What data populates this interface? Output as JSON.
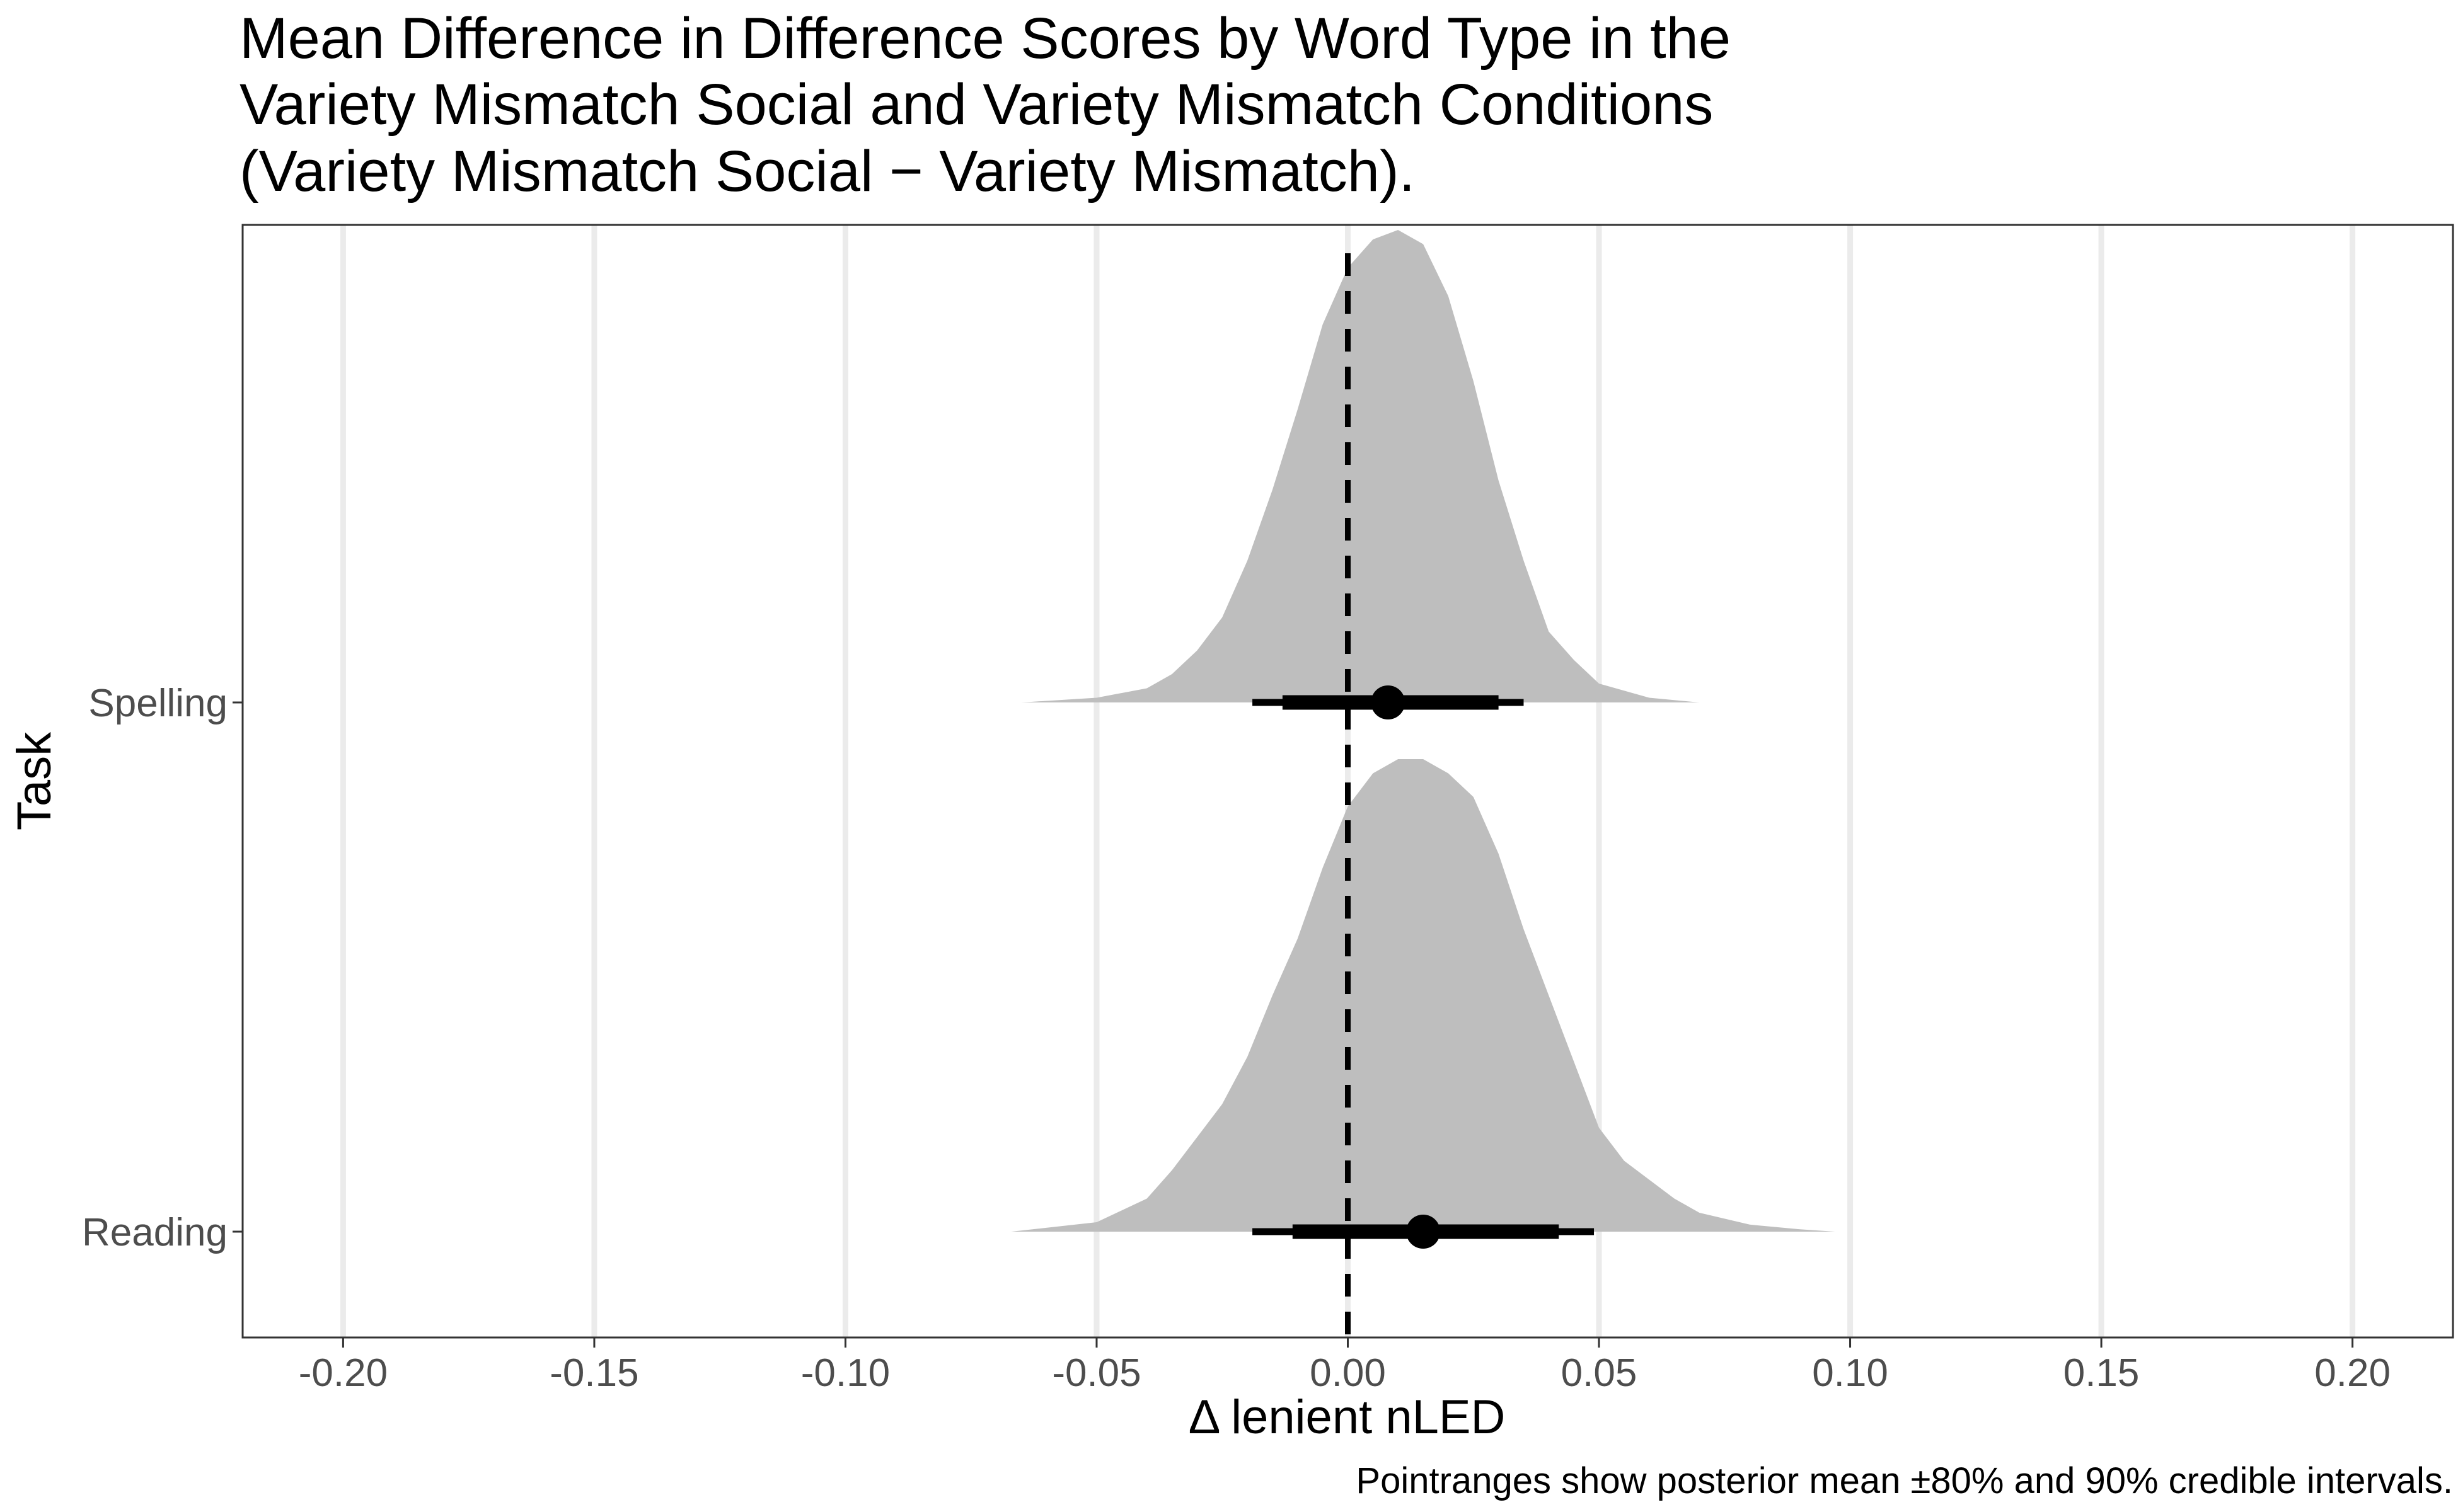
{
  "chart_data": {
    "type": "ridgeline",
    "title": [
      "Mean Difference in Difference Scores by Word Type in the",
      "Variety Mismatch Social and Variety Mismatch Conditions",
      "(Variety Mismatch Social − Variety Mismatch)."
    ],
    "xlabel": "Δ lenient nLED",
    "ylabel": "Task",
    "caption": "Pointranges show posterior mean ±80% and 90% credible intervals.",
    "xlim": [
      -0.22,
      0.22
    ],
    "x_ticks": [
      -0.2,
      -0.15,
      -0.1,
      -0.05,
      0.0,
      0.05,
      0.1,
      0.15,
      0.2
    ],
    "x_tick_labels": [
      "-0.20",
      "-0.15",
      "-0.10",
      "-0.05",
      "0.00",
      "0.05",
      "0.10",
      "0.15",
      "0.20"
    ],
    "reference_line": 0.0,
    "categories": [
      "Spelling",
      "Reading"
    ],
    "series": [
      {
        "name": "Spelling",
        "mean": 0.008,
        "ci80": [
          -0.013,
          0.03
        ],
        "ci90": [
          -0.019,
          0.035
        ],
        "density_range": [
          -0.065,
          0.07
        ],
        "density": [
          [
            -0.065,
            0.0
          ],
          [
            -0.05,
            0.01
          ],
          [
            -0.04,
            0.03
          ],
          [
            -0.035,
            0.06
          ],
          [
            -0.03,
            0.11
          ],
          [
            -0.025,
            0.18
          ],
          [
            -0.02,
            0.3
          ],
          [
            -0.015,
            0.45
          ],
          [
            -0.01,
            0.62
          ],
          [
            -0.005,
            0.8
          ],
          [
            0.0,
            0.92
          ],
          [
            0.005,
            0.98
          ],
          [
            0.01,
            1.0
          ],
          [
            0.015,
            0.97
          ],
          [
            0.02,
            0.86
          ],
          [
            0.025,
            0.68
          ],
          [
            0.03,
            0.47
          ],
          [
            0.035,
            0.3
          ],
          [
            0.04,
            0.15
          ],
          [
            0.045,
            0.09
          ],
          [
            0.05,
            0.04
          ],
          [
            0.06,
            0.01
          ],
          [
            0.07,
            0.0
          ]
        ]
      },
      {
        "name": "Reading",
        "mean": 0.015,
        "ci80": [
          -0.011,
          0.042
        ],
        "ci90": [
          -0.019,
          0.049
        ],
        "density_range": [
          -0.067,
          0.097
        ],
        "density": [
          [
            -0.067,
            0.0
          ],
          [
            -0.05,
            0.02
          ],
          [
            -0.04,
            0.07
          ],
          [
            -0.035,
            0.13
          ],
          [
            -0.03,
            0.2
          ],
          [
            -0.025,
            0.27
          ],
          [
            -0.02,
            0.37
          ],
          [
            -0.015,
            0.5
          ],
          [
            -0.01,
            0.62
          ],
          [
            -0.005,
            0.77
          ],
          [
            0.0,
            0.9
          ],
          [
            0.005,
            0.97
          ],
          [
            0.01,
            1.0
          ],
          [
            0.015,
            1.0
          ],
          [
            0.02,
            0.97
          ],
          [
            0.025,
            0.92
          ],
          [
            0.03,
            0.8
          ],
          [
            0.035,
            0.64
          ],
          [
            0.04,
            0.5
          ],
          [
            0.045,
            0.36
          ],
          [
            0.05,
            0.22
          ],
          [
            0.055,
            0.15
          ],
          [
            0.06,
            0.11
          ],
          [
            0.065,
            0.07
          ],
          [
            0.07,
            0.04
          ],
          [
            0.08,
            0.015
          ],
          [
            0.09,
            0.005
          ],
          [
            0.097,
            0.0
          ]
        ]
      }
    ],
    "colors": {
      "density_fill": "#bebebe",
      "gridline": "#ebebeb",
      "panel_border": "#333333",
      "pointrange": "#000000",
      "tick_text": "#4d4d4d"
    }
  }
}
